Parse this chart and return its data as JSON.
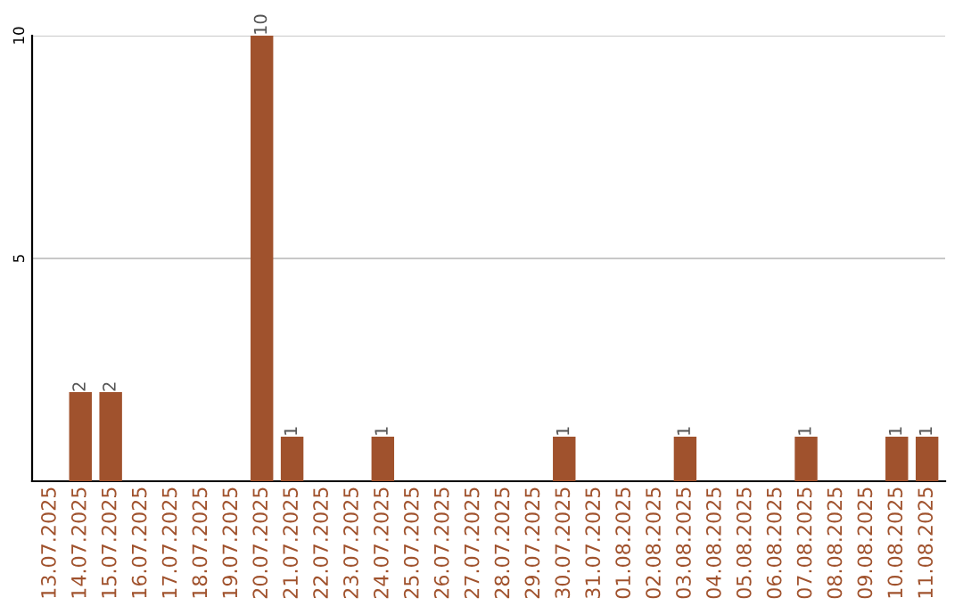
{
  "chart_data": {
    "type": "bar",
    "categories": [
      "13.07.2025",
      "14.07.2025",
      "15.07.2025",
      "16.07.2025",
      "17.07.2025",
      "18.07.2025",
      "19.07.2025",
      "20.07.2025",
      "21.07.2025",
      "22.07.2025",
      "23.07.2025",
      "24.07.2025",
      "25.07.2025",
      "26.07.2025",
      "27.07.2025",
      "28.07.2025",
      "29.07.2025",
      "30.07.2025",
      "31.07.2025",
      "01.08.2025",
      "02.08.2025",
      "03.08.2025",
      "04.08.2025",
      "05.08.2025",
      "06.08.2025",
      "07.08.2025",
      "08.08.2025",
      "09.08.2025",
      "10.08.2025",
      "11.08.2025"
    ],
    "values": [
      0,
      2,
      2,
      0,
      0,
      0,
      0,
      10,
      1,
      0,
      0,
      1,
      0,
      0,
      0,
      0,
      0,
      1,
      0,
      0,
      0,
      1,
      0,
      0,
      0,
      1,
      0,
      0,
      1,
      1
    ],
    "value_labels": [
      null,
      "2",
      "2",
      null,
      null,
      null,
      null,
      "10",
      "1",
      null,
      null,
      "1",
      null,
      null,
      null,
      null,
      null,
      "1",
      null,
      null,
      null,
      "1",
      null,
      null,
      null,
      "1",
      null,
      null,
      "1",
      "1"
    ],
    "color": "#a0522d",
    "ylim": [
      0,
      10
    ],
    "yticks": [
      5,
      10
    ],
    "grid": "y"
  }
}
